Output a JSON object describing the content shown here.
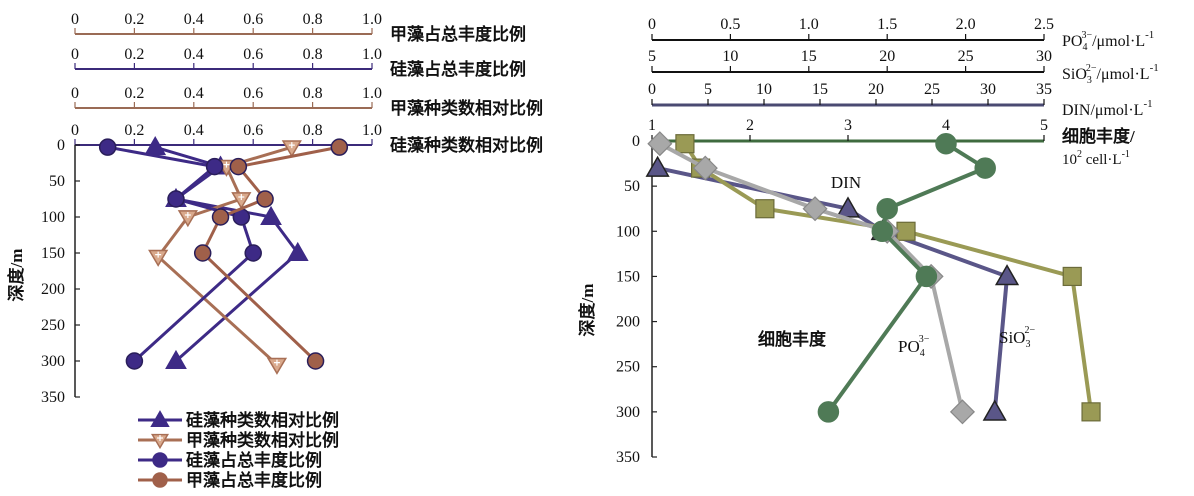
{
  "chart_data": [
    {
      "type": "line",
      "ylabel": "深度/m",
      "ylim": [
        0,
        350
      ],
      "yticks": [
        0,
        50,
        100,
        150,
        200,
        250,
        300,
        350
      ],
      "x_axes": [
        {
          "label": "甲藻占总丰度比例",
          "range": [
            0,
            1.0
          ],
          "ticks": [
            "0",
            "0.2",
            "0.4",
            "0.6",
            "0.8",
            "1.0"
          ],
          "color": "#9a6b55"
        },
        {
          "label": "硅藻占总丰度比例",
          "range": [
            0,
            1.0
          ],
          "ticks": [
            "0",
            "0.2",
            "0.4",
            "0.6",
            "0.8",
            "1.0"
          ],
          "color": "#3b2a7a"
        },
        {
          "label": "甲藻种类数相对比例",
          "range": [
            0,
            1.0
          ],
          "ticks": [
            "0",
            "0.2",
            "0.4",
            "0.6",
            "0.8",
            "1.0"
          ],
          "color": "#9a6b55"
        },
        {
          "label": "硅藻种类数相对比例",
          "range": [
            0,
            1.0
          ],
          "ticks": [
            "0",
            "0.2",
            "0.4",
            "0.6",
            "0.8",
            "1.0"
          ],
          "color": "#3b2a7a"
        }
      ],
      "series": [
        {
          "name": "硅藻种类数相对比例",
          "marker": "triangle",
          "color": "#3d2a86",
          "x": [
            0.27,
            0.49,
            0.34,
            0.66,
            0.75,
            0.34
          ],
          "y": [
            3,
            30,
            75,
            100,
            150,
            300
          ]
        },
        {
          "name": "甲藻种类数相对比例",
          "marker": "down-triangle",
          "color": "#a86f55",
          "x": [
            0.73,
            0.51,
            0.56,
            0.38,
            0.28,
            0.68
          ],
          "y": [
            3,
            30,
            75,
            100,
            155,
            305
          ]
        },
        {
          "name": "硅藻占总丰度比例",
          "marker": "circle",
          "color": "#3d2a86",
          "x": [
            0.11,
            0.47,
            0.34,
            0.56,
            0.6,
            0.2
          ],
          "y": [
            3,
            30,
            75,
            100,
            150,
            300
          ]
        },
        {
          "name": "甲藻占总丰度比例",
          "marker": "circle",
          "color": "#a0604a",
          "x": [
            0.89,
            0.55,
            0.64,
            0.49,
            0.43,
            0.81
          ],
          "y": [
            3,
            30,
            75,
            100,
            150,
            300
          ]
        }
      ]
    },
    {
      "type": "line",
      "ylabel": "深度/m",
      "ylim": [
        0,
        350
      ],
      "yticks": [
        0,
        50,
        100,
        150,
        200,
        250,
        300,
        350
      ],
      "x_axes": [
        {
          "label_main": "PO",
          "label_sub": "4",
          "label_sup": "3−",
          "label_tail": "/μmol·L",
          "label_exp": "-1",
          "range": [
            0,
            2.5
          ],
          "ticks": [
            "0",
            "0.5",
            "1.0",
            "1.5",
            "2.0",
            "2.5"
          ],
          "color": "#000000"
        },
        {
          "label_main": "SiO",
          "label_sub": "3",
          "label_sup": "2−",
          "label_tail": "/μmol·L",
          "label_exp": "-1",
          "range": [
            5,
            30
          ],
          "ticks": [
            "5",
            "10",
            "15",
            "20",
            "25",
            "30"
          ],
          "color": "#000000"
        },
        {
          "label_main": "DIN/μmol·L",
          "label_exp": "-1",
          "range": [
            0,
            35
          ],
          "ticks": [
            "0",
            "5",
            "10",
            "15",
            "20",
            "25",
            "30",
            "35"
          ],
          "color": "#4a4a72"
        },
        {
          "label_line1": "细胞丰度/",
          "label_line2_main": "10",
          "label_line2_exp": "2",
          "label_line2_tail": " cell·L",
          "label_line2_exp2": "-1",
          "range": [
            1,
            5
          ],
          "ticks": [
            "1",
            "2",
            "3",
            "4",
            "5"
          ],
          "color": "#3f6b3f"
        }
      ],
      "annotations": {
        "din": "DIN",
        "cell": "细胞丰度",
        "po4_main": "PO",
        "po4_sub": "4",
        "po4_sup": "3−",
        "sio3_main": "SiO",
        "sio3_sub": "3",
        "sio3_sup": "2−"
      },
      "series": [
        {
          "name": "DIN",
          "marker": "triangle",
          "color": "#5a5688",
          "axis": 2,
          "x": [
            0.5,
            17.5,
            20.6,
            31.7,
            30.6
          ],
          "y": [
            30,
            75,
            100,
            150,
            300
          ]
        },
        {
          "name": "SiO3",
          "marker": "square",
          "color": "#9a9a55",
          "axis": 1,
          "x": [
            7.1,
            8.1,
            12.2,
            21.2,
            31.8,
            33.0
          ],
          "y": [
            3,
            30,
            75,
            100,
            150,
            300
          ]
        },
        {
          "name": "PO4",
          "marker": "diamond",
          "color": "#a8a8a8",
          "axis": 0,
          "x": [
            0.05,
            0.34,
            1.04,
            1.5,
            1.78,
            1.98
          ],
          "y": [
            3,
            30,
            75,
            100,
            150,
            300
          ]
        },
        {
          "name": "细胞丰度",
          "marker": "circle",
          "color": "#4f7a56",
          "axis": 3,
          "x": [
            4.0,
            4.4,
            3.4,
            3.35,
            3.8,
            2.8
          ],
          "y": [
            3,
            30,
            75,
            100,
            150,
            300
          ]
        }
      ]
    }
  ],
  "legend": [
    {
      "label": "硅藻种类数相对比例",
      "marker": "triangle",
      "color": "#3d2a86"
    },
    {
      "label": "甲藻种类数相对比例",
      "marker": "down-triangle",
      "color": "#a86f55"
    },
    {
      "label": "硅藻占总丰度比例",
      "marker": "circle",
      "color": "#3d2a86"
    },
    {
      "label": "甲藻占总丰度比例",
      "marker": "circle",
      "color": "#a0604a"
    }
  ]
}
